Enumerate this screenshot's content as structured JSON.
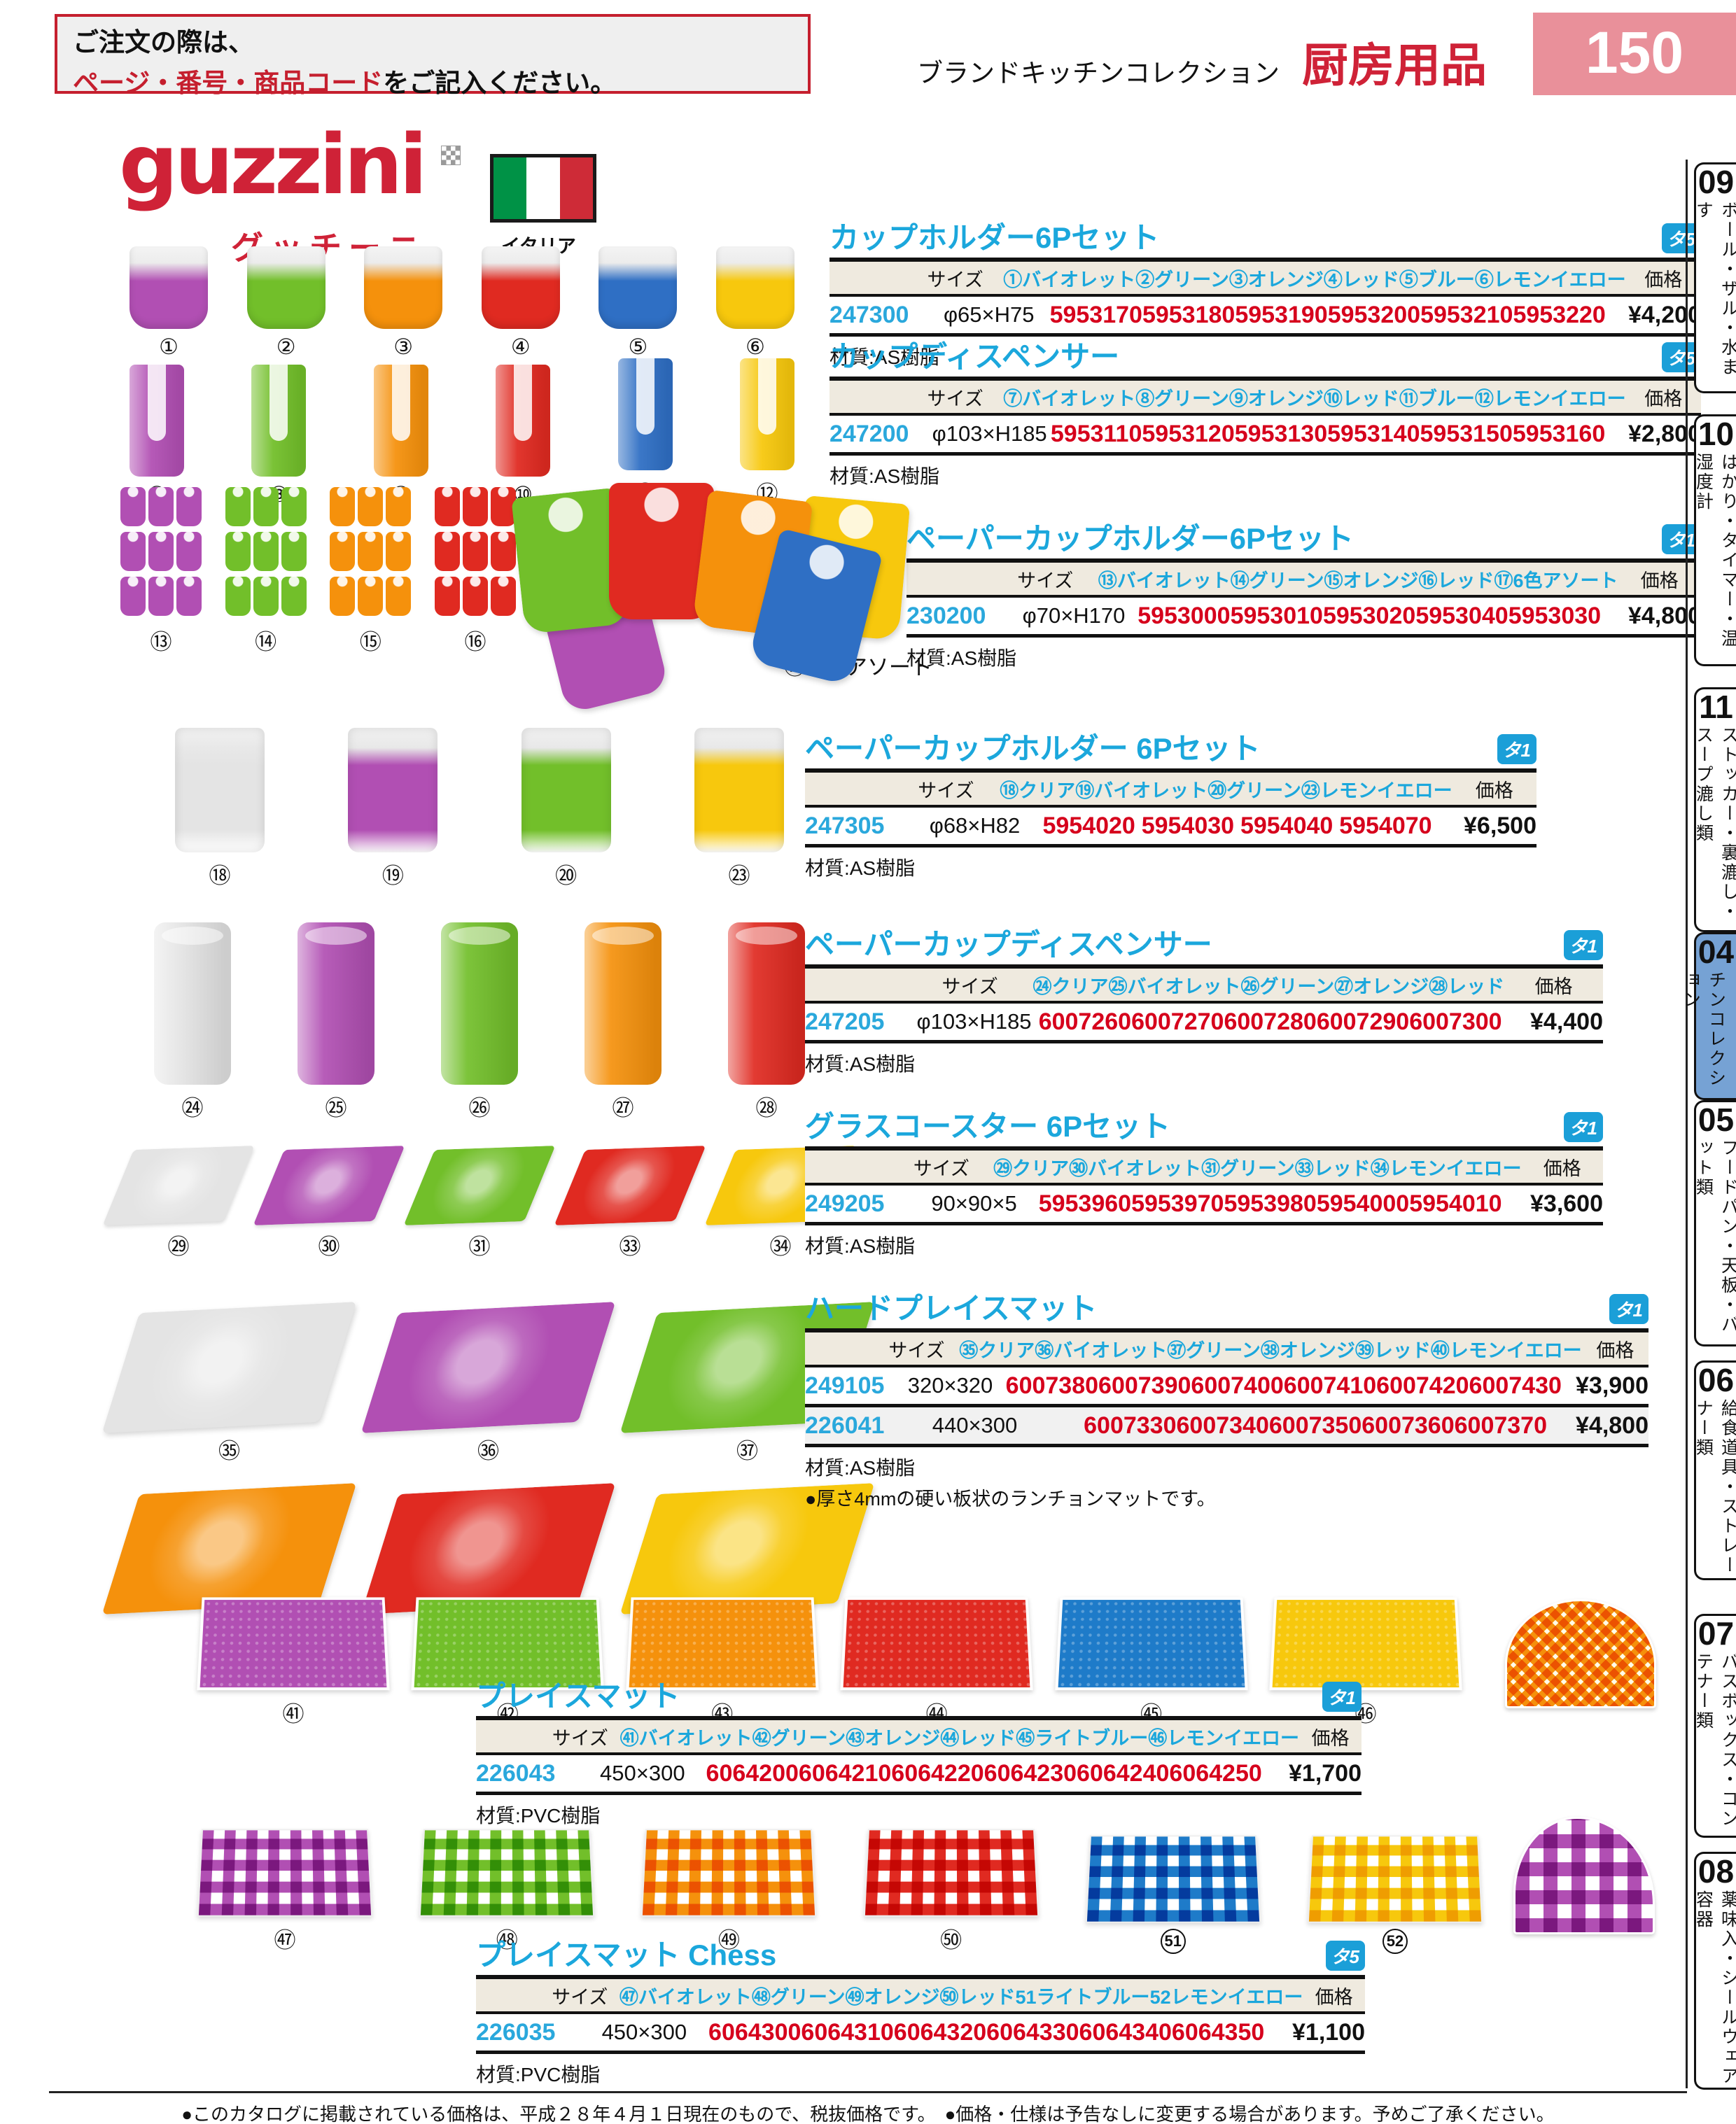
{
  "page": {
    "order_note": {
      "line1": "ご注文の際は、",
      "highlight": "ページ・番号・商品コード",
      "line2_rest": "をご記入ください。"
    },
    "collection_label": "ブランドキッチンコレクション",
    "category_label": "厨房用品",
    "page_number": "150",
    "footer": "●このカタログに掲載されている価格は、平成２８年４月１日現在のもので、税抜価格です。　●価格・仕様は予告なしに変更する場合があります。予めご了承ください。"
  },
  "brand": {
    "logo": "guzzini",
    "name_jp": "グッチーニ",
    "country_label": "イタリア"
  },
  "sidebar": {
    "tabs": [
      {
        "num": "09",
        "label": "ボール・ザル・水ます",
        "active": false
      },
      {
        "num": "10",
        "label": "はかり・タイマー・温湿度計",
        "active": false
      },
      {
        "num": "11",
        "label": "ストッカー・裏漉し・スープ漉し類",
        "active": false
      },
      {
        "num": "04",
        "label": "ブランドキッチンコレクション",
        "active": true
      },
      {
        "num": "05",
        "label": "フードパン・天板・バット類",
        "active": false
      },
      {
        "num": "06",
        "label": "給食道具・ストレーナー類",
        "active": false
      },
      {
        "num": "07",
        "label": "バスボックス・コンテナー類",
        "active": false
      },
      {
        "num": "08",
        "label": "薬味入・シールウェア容器",
        "active": false
      }
    ]
  },
  "colors": {
    "violet": "#b14fb3",
    "green": "#72bf2a",
    "orange": "#f5910c",
    "red": "#e02a21",
    "blue": "#2f6fc4",
    "lightblue": "#1e7bc9",
    "yellow": "#f7c80d",
    "clear": "#e4e4e4",
    "title_cyan": "#1ba7dc",
    "code_red": "#d6001c",
    "badge_blue": "#1b9fd8",
    "page_pink": "#e9909a",
    "brand_red": "#cf2237",
    "active_tab_blue": "#76a2d4"
  },
  "image_rows": [
    {
      "name": "cup-holder",
      "type": "cup",
      "items": [
        {
          "label": "①",
          "color": "violet"
        },
        {
          "label": "②",
          "color": "green"
        },
        {
          "label": "③",
          "color": "orange"
        },
        {
          "label": "④",
          "color": "red"
        },
        {
          "label": "⑤",
          "color": "blue"
        },
        {
          "label": "⑥",
          "color": "yellow"
        }
      ]
    },
    {
      "name": "cup-dispenser",
      "type": "dispenser",
      "items": [
        {
          "label": "⑦",
          "color": "violet"
        },
        {
          "label": "⑧",
          "color": "green"
        },
        {
          "label": "⑨",
          "color": "orange"
        },
        {
          "label": "⑩",
          "color": "red"
        },
        {
          "label": "⑪",
          "color": "blue"
        },
        {
          "label": "⑫",
          "color": "yellow"
        }
      ]
    },
    {
      "name": "paper-cup-holder-group",
      "type": "cupgroup",
      "items": [
        {
          "label": "⑬",
          "color": "violet"
        },
        {
          "label": "⑭",
          "color": "green"
        },
        {
          "label": "⑮",
          "color": "orange"
        },
        {
          "label": "⑯",
          "color": "red"
        }
      ],
      "assort": {
        "label": "⑰",
        "caption": "6色アソート",
        "colors": [
          "violet",
          "green",
          "red",
          "orange",
          "blue",
          "yellow"
        ]
      }
    },
    {
      "name": "paper-cup-holder",
      "type": "holder",
      "items": [
        {
          "label": "⑱",
          "color": "clear"
        },
        {
          "label": "⑲",
          "color": "violet"
        },
        {
          "label": "⑳",
          "color": "green"
        },
        {
          "label": "㉓",
          "color": "yellow"
        }
      ]
    },
    {
      "name": "paper-cup-dispenser",
      "type": "cylinder",
      "items": [
        {
          "label": "㉔",
          "color": "clear"
        },
        {
          "label": "㉕",
          "color": "violet"
        },
        {
          "label": "㉖",
          "color": "green"
        },
        {
          "label": "㉗",
          "color": "orange"
        },
        {
          "label": "㉘",
          "color": "red"
        }
      ]
    },
    {
      "name": "glass-coaster",
      "type": "coaster",
      "items": [
        {
          "label": "㉙",
          "color": "clear"
        },
        {
          "label": "㉚",
          "color": "violet"
        },
        {
          "label": "㉛",
          "color": "green"
        },
        {
          "label": "㉝",
          "color": "red"
        },
        {
          "label": "㉞",
          "color": "yellow"
        }
      ]
    },
    {
      "name": "hard-placemat",
      "type": "hardmat",
      "split": 3,
      "items": [
        {
          "label": "㉟",
          "color": "clear"
        },
        {
          "label": "㊱",
          "color": "violet"
        },
        {
          "label": "㊲",
          "color": "green"
        },
        {
          "label": "㊳",
          "color": "orange"
        },
        {
          "label": "㊴",
          "color": "red"
        },
        {
          "label": "㊵",
          "color": "yellow"
        }
      ]
    },
    {
      "name": "placemat",
      "type": "flatmat",
      "items": [
        {
          "label": "㊶",
          "color": "violet"
        },
        {
          "label": "㊷",
          "color": "green"
        },
        {
          "label": "㊸",
          "color": "orange"
        },
        {
          "label": "㊹",
          "color": "red"
        },
        {
          "label": "㊺",
          "color": "lightblue"
        },
        {
          "label": "㊻",
          "color": "yellow"
        }
      ]
    },
    {
      "name": "placemat-chess",
      "type": "gingham",
      "items": [
        {
          "label": "㊼",
          "color": "violet"
        },
        {
          "label": "㊽",
          "color": "green"
        },
        {
          "label": "㊾",
          "color": "orange"
        },
        {
          "label": "㊿",
          "color": "red"
        },
        {
          "label": "51",
          "color": "lightblue"
        },
        {
          "label": "52",
          "color": "yellow"
        }
      ]
    }
  ],
  "products": [
    {
      "title": "カップホルダー6Pセット",
      "badge": "タ5",
      "size_header": "サイズ",
      "price_header": "価格",
      "columns": [
        "①バイオレット",
        "②グリーン",
        "③オレンジ",
        "④レッド",
        "⑤ブルー",
        "⑥レモンイエロー"
      ],
      "rows": [
        {
          "code": "247300",
          "size": "φ65×H75",
          "items": [
            "5953170",
            "5953180",
            "5953190",
            "5953200",
            "5953210",
            "5953220"
          ],
          "price": "¥4,200"
        }
      ],
      "material": "材質:AS樹脂",
      "note": ""
    },
    {
      "title": "カップディスペンサー",
      "badge": "タ5",
      "size_header": "サイズ",
      "price_header": "価格",
      "columns": [
        "⑦バイオレット",
        "⑧グリーン",
        "⑨オレンジ",
        "⑩レッド",
        "⑪ブルー",
        "⑫レモンイエロー"
      ],
      "rows": [
        {
          "code": "247200",
          "size": "φ103×H185",
          "items": [
            "5953110",
            "5953120",
            "5953130",
            "5953140",
            "5953150",
            "5953160"
          ],
          "price": "¥2,800"
        }
      ],
      "material": "材質:AS樹脂",
      "note": ""
    },
    {
      "title": "ペーパーカップホルダー6Pセット",
      "badge": "タ1",
      "size_header": "サイズ",
      "price_header": "価格",
      "columns": [
        "⑬バイオレット",
        "⑭グリーン",
        "⑮オレンジ",
        "⑯レッド",
        "⑰6色アソート"
      ],
      "rows": [
        {
          "code": "230200",
          "size": "φ70×H170",
          "items": [
            "5953000",
            "5953010",
            "5953020",
            "5953040",
            "5953030"
          ],
          "price": "¥4,800"
        }
      ],
      "material": "材質:AS樹脂",
      "note": ""
    },
    {
      "title": "ペーパーカップホルダー 6Pセット",
      "badge": "タ1",
      "size_header": "サイズ",
      "price_header": "価格",
      "columns": [
        "⑱クリア",
        "⑲バイオレット",
        "⑳グリーン",
        "㉓レモンイエロー"
      ],
      "rows": [
        {
          "code": "247305",
          "size": "φ68×H82",
          "items": [
            "5954020",
            "5954030",
            "5954040",
            "5954070"
          ],
          "price": "¥6,500"
        }
      ],
      "material": "材質:AS樹脂",
      "note": ""
    },
    {
      "title": "ペーパーカップディスペンサー",
      "badge": "タ1",
      "size_header": "サイズ",
      "price_header": "価格",
      "columns": [
        "㉔クリア",
        "㉕バイオレット",
        "㉖グリーン",
        "㉗オレンジ",
        "㉘レッド"
      ],
      "rows": [
        {
          "code": "247205",
          "size": "φ103×H185",
          "items": [
            "6007260",
            "6007270",
            "6007280",
            "6007290",
            "6007300"
          ],
          "price": "¥4,400"
        }
      ],
      "material": "材質:AS樹脂",
      "note": ""
    },
    {
      "title": "グラスコースター 6Pセット",
      "badge": "タ1",
      "size_header": "サイズ",
      "price_header": "価格",
      "columns": [
        "㉙クリア",
        "㉚バイオレット",
        "㉛グリーン",
        "㉝レッド",
        "㉞レモンイエロー"
      ],
      "rows": [
        {
          "code": "249205",
          "size": "90×90×5",
          "items": [
            "5953960",
            "5953970",
            "5953980",
            "5954000",
            "5954010"
          ],
          "price": "¥3,600"
        }
      ],
      "material": "材質:AS樹脂",
      "note": ""
    },
    {
      "title": "ハードプレイスマット",
      "badge": "タ1",
      "size_header": "サイズ",
      "price_header": "価格",
      "columns": [
        "㉟クリア",
        "㊱バイオレット",
        "㊲グリーン",
        "㊳オレンジ",
        "㊴レッド",
        "㊵レモンイエロー"
      ],
      "rows": [
        {
          "code": "249105",
          "size": "320×320",
          "items": [
            "6007380",
            "6007390",
            "6007400",
            "6007410",
            "6007420",
            "6007430"
          ],
          "price": "¥3,900"
        },
        {
          "code": "226041",
          "size": "440×300",
          "items": [
            "",
            "6007330",
            "6007340",
            "6007350",
            "6007360",
            "6007370"
          ],
          "price": "¥4,800"
        }
      ],
      "material": "材質:AS樹脂",
      "note": "●厚さ4mmの硬い板状のランチョンマットです。"
    },
    {
      "title": "プレイスマット",
      "badge": "タ1",
      "size_header": "サイズ",
      "price_header": "価格",
      "columns": [
        "㊶バイオレット",
        "㊷グリーン",
        "㊸オレンジ",
        "㊹レッド",
        "㊺ライトブルー",
        "㊻レモンイエロー"
      ],
      "rows": [
        {
          "code": "226043",
          "size": "450×300",
          "items": [
            "6064200",
            "6064210",
            "6064220",
            "6064230",
            "6064240",
            "6064250"
          ],
          "price": "¥1,700"
        }
      ],
      "material": "材質:PVC樹脂",
      "note": ""
    },
    {
      "title": "プレイスマット Chess",
      "badge": "タ5",
      "size_header": "サイズ",
      "price_header": "価格",
      "columns": [
        "㊼バイオレット",
        "㊽グリーン",
        "㊾オレンジ",
        "㊿レッド",
        "51ライトブルー",
        "52レモンイエロー"
      ],
      "rows": [
        {
          "code": "226035",
          "size": "450×300",
          "items": [
            "6064300",
            "6064310",
            "6064320",
            "6064330",
            "6064340",
            "6064350"
          ],
          "price": "¥1,100"
        }
      ],
      "material": "材質:PVC樹脂",
      "note": ""
    }
  ]
}
